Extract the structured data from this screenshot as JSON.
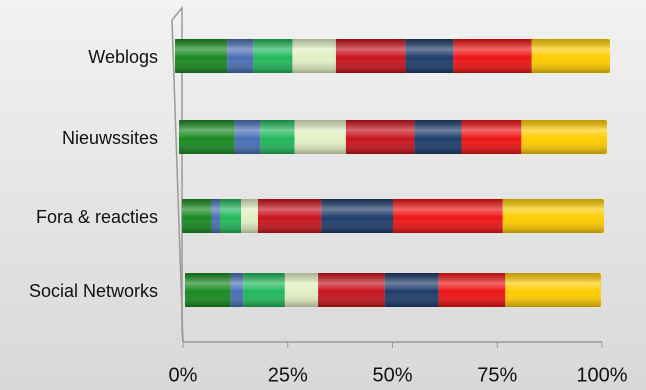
{
  "chart_data": {
    "type": "stacked-bar-100",
    "categories": [
      "Weblogs",
      "Nieuwssites",
      "Fora & reacties",
      "Social Networks"
    ],
    "series": [
      {
        "color": "#1a8a22",
        "values": [
          12,
          13,
          7,
          11
        ]
      },
      {
        "color": "#4a6fb5",
        "values": [
          6,
          6,
          2,
          3
        ]
      },
      {
        "color": "#22b85c",
        "values": [
          9,
          8,
          5,
          10
        ]
      },
      {
        "color": "#e2efc2",
        "values": [
          10,
          12,
          4,
          8
        ]
      },
      {
        "color": "#c8141e",
        "values": [
          16,
          16,
          15,
          16
        ]
      },
      {
        "color": "#1f3d6b",
        "values": [
          11,
          11,
          17,
          13
        ]
      },
      {
        "color": "#ee1515",
        "values": [
          18,
          14,
          26,
          16
        ]
      },
      {
        "color": "#ffcc00",
        "values": [
          18,
          20,
          24,
          23
        ]
      }
    ],
    "xlim": [
      0,
      100
    ],
    "xticks": [
      {
        "value": 0,
        "label": "0%"
      },
      {
        "value": 25,
        "label": "25%"
      },
      {
        "value": 50,
        "label": "50%"
      },
      {
        "value": 75,
        "label": "75%"
      },
      {
        "value": 100,
        "label": "100%"
      }
    ]
  }
}
